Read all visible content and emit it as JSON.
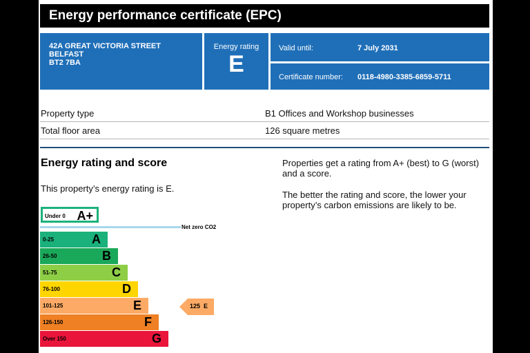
{
  "header": {
    "title": "Energy performance certificate (EPC)"
  },
  "address": {
    "lines": [
      "42A GREAT VICTORIA STREET",
      "BELFAST",
      "BT2 7BA"
    ]
  },
  "rating_box": {
    "label": "Energy rating",
    "value": "E"
  },
  "valid": {
    "label": "Valid until:",
    "value": "7 July 2031"
  },
  "certificate": {
    "label": "Certificate number:",
    "value": "0118-4980-3385-6859-5711"
  },
  "property": {
    "type_label": "Property type",
    "type_value": "B1 Offices and Workshop businesses",
    "area_label": "Total floor area",
    "area_value": "126 square metres"
  },
  "section": {
    "title": "Energy rating and score",
    "rating_text": "This property’s energy rating is E.",
    "para1": "Properties get a rating from A+ (best) to G (worst) and a score.",
    "para2": "The better the rating and score, the lower your property’s carbon emissions are likely to be."
  },
  "scale": {
    "aplus": {
      "range": "Under 0",
      "letter": "A+",
      "color": "#1bb17b"
    },
    "net_zero_label": "Net zero CO2",
    "bands": [
      {
        "range": "0-25",
        "letter": "A",
        "color": "#1bb17b",
        "width_fraction": 0.4
      },
      {
        "range": "26-50",
        "letter": "B",
        "color": "#1aa85a",
        "width_fraction": 0.46
      },
      {
        "range": "51-75",
        "letter": "C",
        "color": "#8dce46",
        "width_fraction": 0.52
      },
      {
        "range": "76-100",
        "letter": "D",
        "color": "#ffd500",
        "width_fraction": 0.58
      },
      {
        "range": "101-125",
        "letter": "E",
        "color": "#fcaa65",
        "width_fraction": 0.64
      },
      {
        "range": "126-150",
        "letter": "F",
        "color": "#ef8023",
        "width_fraction": 0.7
      },
      {
        "range": "Over 150",
        "letter": "G",
        "color": "#e9153b",
        "width_fraction": 0.76
      }
    ],
    "current": {
      "score": "125",
      "letter": "E",
      "color": "#fcaa65"
    }
  }
}
